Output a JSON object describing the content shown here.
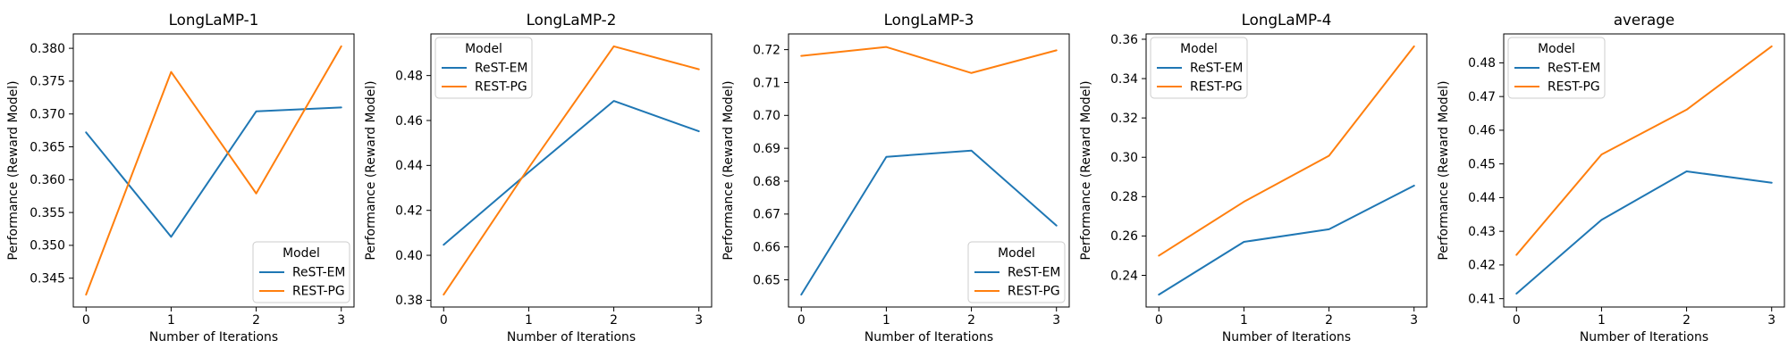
{
  "figure": {
    "background": "#ffffff",
    "xlabel": "Number of Iterations",
    "ylabel": "Performance (Reward Model)",
    "legend_title": "Model",
    "series_names": [
      "ReST-EM",
      "REST-PG"
    ],
    "colors": {
      "rest_em": "#1f77b4",
      "rest_pg": "#ff7f0e"
    }
  },
  "chart_data": [
    {
      "type": "line",
      "title": "LongLaMP-1",
      "xlabel": "Number of Iterations",
      "ylabel": "Performance (Reward Model)",
      "x": [
        0,
        1,
        2,
        3
      ],
      "series": [
        {
          "name": "ReST-EM",
          "color": "#1f77b4",
          "values": [
            0.3672,
            0.3513,
            0.3704,
            0.371
          ]
        },
        {
          "name": "REST-PG",
          "color": "#ff7f0e",
          "values": [
            0.3425,
            0.3764,
            0.3579,
            0.3803
          ]
        }
      ],
      "xlim": [
        -0.15,
        3.15
      ],
      "ylim": [
        0.34061,
        0.38219
      ],
      "xticks": [
        0,
        1,
        2,
        3
      ],
      "yticks": [
        0.345,
        0.35,
        0.355,
        0.36,
        0.365,
        0.37,
        0.375,
        0.38
      ],
      "ytick_decimals": 3,
      "grid": false,
      "legend": {
        "title": "Model",
        "position": "lower right"
      }
    },
    {
      "type": "line",
      "title": "LongLaMP-2",
      "xlabel": "Number of Iterations",
      "ylabel": "Performance (Reward Model)",
      "x": [
        0,
        1,
        2,
        3
      ],
      "series": [
        {
          "name": "ReST-EM",
          "color": "#1f77b4",
          "values": [
            0.4047,
            0.437,
            0.4687,
            0.4552
          ]
        },
        {
          "name": "REST-PG",
          "color": "#ff7f0e",
          "values": [
            0.3825,
            0.439,
            0.493,
            0.4828
          ]
        }
      ],
      "xlim": [
        -0.15,
        3.15
      ],
      "ylim": [
        0.37698,
        0.49853
      ],
      "xticks": [
        0,
        1,
        2,
        3
      ],
      "yticks": [
        0.38,
        0.4,
        0.42,
        0.44,
        0.46,
        0.48
      ],
      "ytick_decimals": 2,
      "grid": false,
      "legend": {
        "title": "Model",
        "position": "upper left"
      }
    },
    {
      "type": "line",
      "title": "LongLaMP-3",
      "xlabel": "Number of Iterations",
      "ylabel": "Performance (Reward Model)",
      "x": [
        0,
        1,
        2,
        3
      ],
      "series": [
        {
          "name": "ReST-EM",
          "color": "#1f77b4",
          "values": [
            0.6455,
            0.6874,
            0.6893,
            0.6665
          ]
        },
        {
          "name": "REST-PG",
          "color": "#ff7f0e",
          "values": [
            0.7181,
            0.7208,
            0.7129,
            0.7198
          ]
        }
      ],
      "xlim": [
        -0.15,
        3.15
      ],
      "ylim": [
        0.64173,
        0.72478
      ],
      "xticks": [
        0,
        1,
        2,
        3
      ],
      "yticks": [
        0.65,
        0.66,
        0.67,
        0.68,
        0.69,
        0.7,
        0.71,
        0.72
      ],
      "ytick_decimals": 2,
      "grid": false,
      "legend": {
        "title": "Model",
        "position": "lower right"
      }
    },
    {
      "type": "line",
      "title": "LongLaMP-4",
      "xlabel": "Number of Iterations",
      "ylabel": "Performance (Reward Model)",
      "x": [
        0,
        1,
        2,
        3
      ],
      "series": [
        {
          "name": "ReST-EM",
          "color": "#1f77b4",
          "values": [
            0.2302,
            0.257,
            0.2634,
            0.2856
          ]
        },
        {
          "name": "REST-PG",
          "color": "#ff7f0e",
          "values": [
            0.25,
            0.2774,
            0.3008,
            0.3564
          ]
        }
      ],
      "xlim": [
        -0.15,
        3.15
      ],
      "ylim": [
        0.22389,
        0.36271
      ],
      "xticks": [
        0,
        1,
        2,
        3
      ],
      "yticks": [
        0.24,
        0.26,
        0.28,
        0.3,
        0.32,
        0.34,
        0.36
      ],
      "ytick_decimals": 2,
      "grid": false,
      "legend": {
        "title": "Model",
        "position": "upper left"
      }
    },
    {
      "type": "line",
      "title": "average",
      "xlabel": "Number of Iterations",
      "ylabel": "Performance (Reward Model)",
      "x": [
        0,
        1,
        2,
        3
      ],
      "series": [
        {
          "name": "ReST-EM",
          "color": "#1f77b4",
          "values": [
            0.4115,
            0.4334,
            0.4478,
            0.4444
          ]
        },
        {
          "name": "REST-PG",
          "color": "#ff7f0e",
          "values": [
            0.423,
            0.4528,
            0.4661,
            0.4849
          ]
        }
      ],
      "xlim": [
        -0.15,
        3.15
      ],
      "ylim": [
        0.40752,
        0.48859
      ],
      "xticks": [
        0,
        1,
        2,
        3
      ],
      "yticks": [
        0.41,
        0.42,
        0.43,
        0.44,
        0.45,
        0.46,
        0.47,
        0.48
      ],
      "ytick_decimals": 2,
      "grid": false,
      "legend": {
        "title": "Model",
        "position": "upper left"
      }
    }
  ]
}
